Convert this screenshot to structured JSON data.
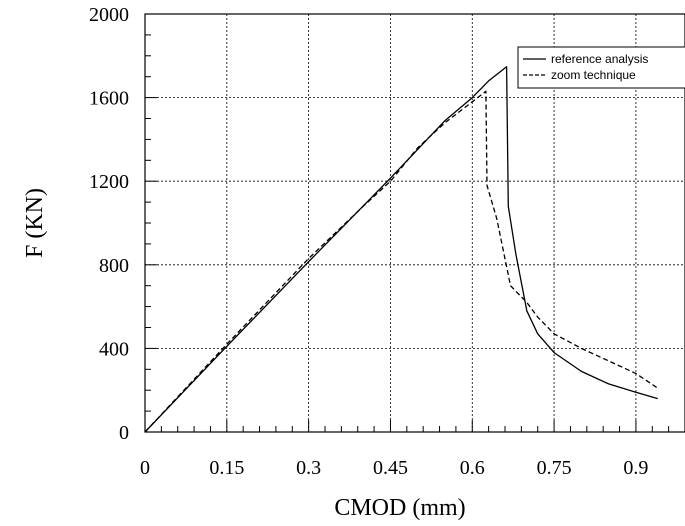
{
  "chart_data": {
    "type": "line",
    "xlabel": "CMOD (mm)",
    "ylabel": "F (KN)",
    "xlim": [
      0,
      0.99
    ],
    "ylim": [
      0,
      2000
    ],
    "x_ticks": [
      "0",
      "0.15",
      "0.3",
      "0.45",
      "0.6",
      "0.75",
      "0.9"
    ],
    "y_ticks": [
      "0",
      "400",
      "800",
      "1200",
      "1600",
      "2000"
    ],
    "grid": true,
    "legend_position": "top-right",
    "series": [
      {
        "name": "reference analysis",
        "style": "solid",
        "color": "#000000",
        "points": [
          [
            0,
            0
          ],
          [
            0.15,
            410
          ],
          [
            0.3,
            815
          ],
          [
            0.45,
            1215
          ],
          [
            0.55,
            1490
          ],
          [
            0.6,
            1600
          ],
          [
            0.63,
            1680
          ],
          [
            0.663,
            1748
          ],
          [
            0.666,
            1080
          ],
          [
            0.68,
            850
          ],
          [
            0.7,
            580
          ],
          [
            0.72,
            470
          ],
          [
            0.75,
            380
          ],
          [
            0.8,
            290
          ],
          [
            0.85,
            230
          ],
          [
            0.9,
            190
          ],
          [
            0.94,
            160
          ]
        ]
      },
      {
        "name": "zoom technique",
        "style": "dashed",
        "color": "#000000",
        "points": [
          [
            0,
            0
          ],
          [
            0.15,
            420
          ],
          [
            0.3,
            830
          ],
          [
            0.4,
            1080
          ],
          [
            0.45,
            1200
          ],
          [
            0.5,
            1360
          ],
          [
            0.55,
            1480
          ],
          [
            0.6,
            1580
          ],
          [
            0.625,
            1630
          ],
          [
            0.627,
            1180
          ],
          [
            0.645,
            1020
          ],
          [
            0.67,
            700
          ],
          [
            0.7,
            620
          ],
          [
            0.72,
            550
          ],
          [
            0.75,
            470
          ],
          [
            0.8,
            400
          ],
          [
            0.85,
            340
          ],
          [
            0.9,
            280
          ],
          [
            0.94,
            210
          ]
        ]
      }
    ]
  }
}
